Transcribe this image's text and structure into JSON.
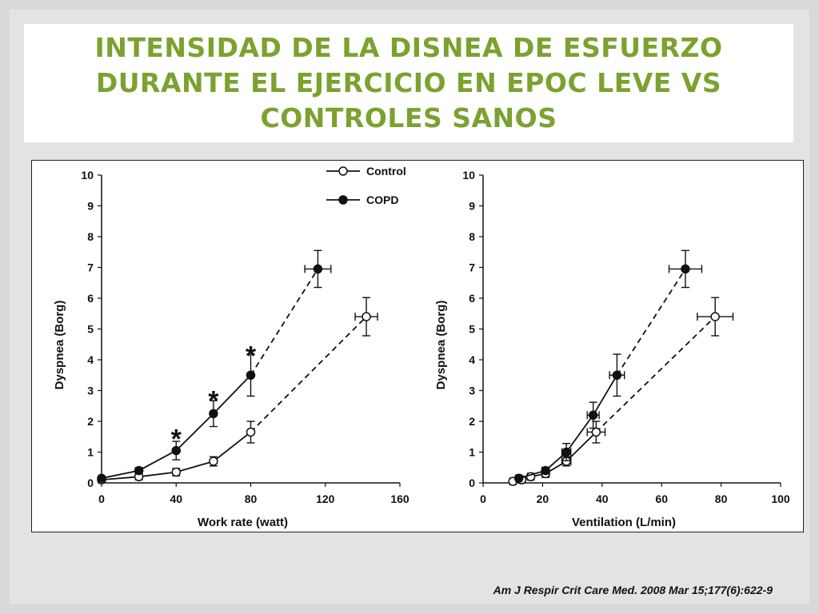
{
  "slide": {
    "title": "INTENSIDAD DE LA DISNEA DE ESFUERZO DURANTE EL EJERCICIO EN EPOC LEVE VS CONTROLES SANOS",
    "citation": "Am J Respir Crit Care Med. 2008 Mar 15;177(6):622-9",
    "title_color": "#7ba22f"
  },
  "chart_data": [
    {
      "type": "line",
      "xlabel": "Work rate (watt)",
      "ylabel": "Dyspnea (Borg)",
      "xlim": [
        0,
        160
      ],
      "ylim": [
        0,
        10
      ],
      "xticks": [
        "0",
        "40",
        "80",
        "120",
        "160"
      ],
      "yticks": [
        "0",
        "1",
        "2",
        "3",
        "4",
        "5",
        "6",
        "7",
        "8",
        "9",
        "10"
      ],
      "legend": {
        "placement": "top-right",
        "entries": [
          "Control",
          "COPD"
        ]
      },
      "series": [
        {
          "name": "Control",
          "marker": "open-circle",
          "x": [
            0,
            20,
            40,
            60,
            80,
            142
          ],
          "y": [
            0.1,
            0.2,
            0.35,
            0.7,
            1.65,
            5.4
          ],
          "yerr": [
            0.05,
            0.1,
            0.12,
            0.15,
            0.35,
            0.62
          ],
          "xerr": [
            0,
            0,
            0,
            0,
            0,
            6
          ]
        },
        {
          "name": "COPD",
          "marker": "filled-circle",
          "x": [
            0,
            20,
            40,
            60,
            80,
            116
          ],
          "y": [
            0.15,
            0.4,
            1.05,
            2.25,
            3.5,
            6.95
          ],
          "yerr": [
            0.05,
            0.1,
            0.3,
            0.42,
            0.68,
            0.6
          ],
          "xerr": [
            0,
            0,
            0,
            0,
            0,
            7
          ]
        }
      ],
      "significance_marks": [
        {
          "label": "*",
          "x": 40,
          "y": 1.6
        },
        {
          "label": "*",
          "x": 60,
          "y": 2.85
        },
        {
          "label": "*",
          "x": 80,
          "y": 4.3
        }
      ]
    },
    {
      "type": "line",
      "xlabel": "Ventilation (L/min)",
      "ylabel": "Dyspnea (Borg)",
      "xlim": [
        0,
        100
      ],
      "ylim": [
        0,
        10
      ],
      "xticks": [
        "0",
        "20",
        "40",
        "60",
        "80",
        "100"
      ],
      "yticks": [
        "0",
        "1",
        "2",
        "3",
        "4",
        "5",
        "6",
        "7",
        "8",
        "9",
        "10"
      ],
      "series": [
        {
          "name": "Control",
          "marker": "open-circle",
          "x": [
            10,
            13,
            16,
            21,
            28,
            38,
            78
          ],
          "y": [
            0.05,
            0.1,
            0.2,
            0.3,
            0.7,
            1.65,
            5.4
          ],
          "yerr": [
            0.05,
            0.05,
            0.1,
            0.12,
            0.15,
            0.35,
            0.62
          ],
          "xerr": [
            1,
            1,
            1,
            1.2,
            1.5,
            3,
            6
          ]
        },
        {
          "name": "COPD",
          "marker": "filled-circle",
          "x": [
            12,
            21,
            28,
            37,
            45,
            68
          ],
          "y": [
            0.15,
            0.4,
            1.0,
            2.2,
            3.5,
            6.95
          ],
          "yerr": [
            0.05,
            0.1,
            0.28,
            0.42,
            0.68,
            0.6
          ],
          "xerr": [
            1,
            1.2,
            1.5,
            2,
            2.5,
            5.5
          ]
        }
      ]
    }
  ]
}
